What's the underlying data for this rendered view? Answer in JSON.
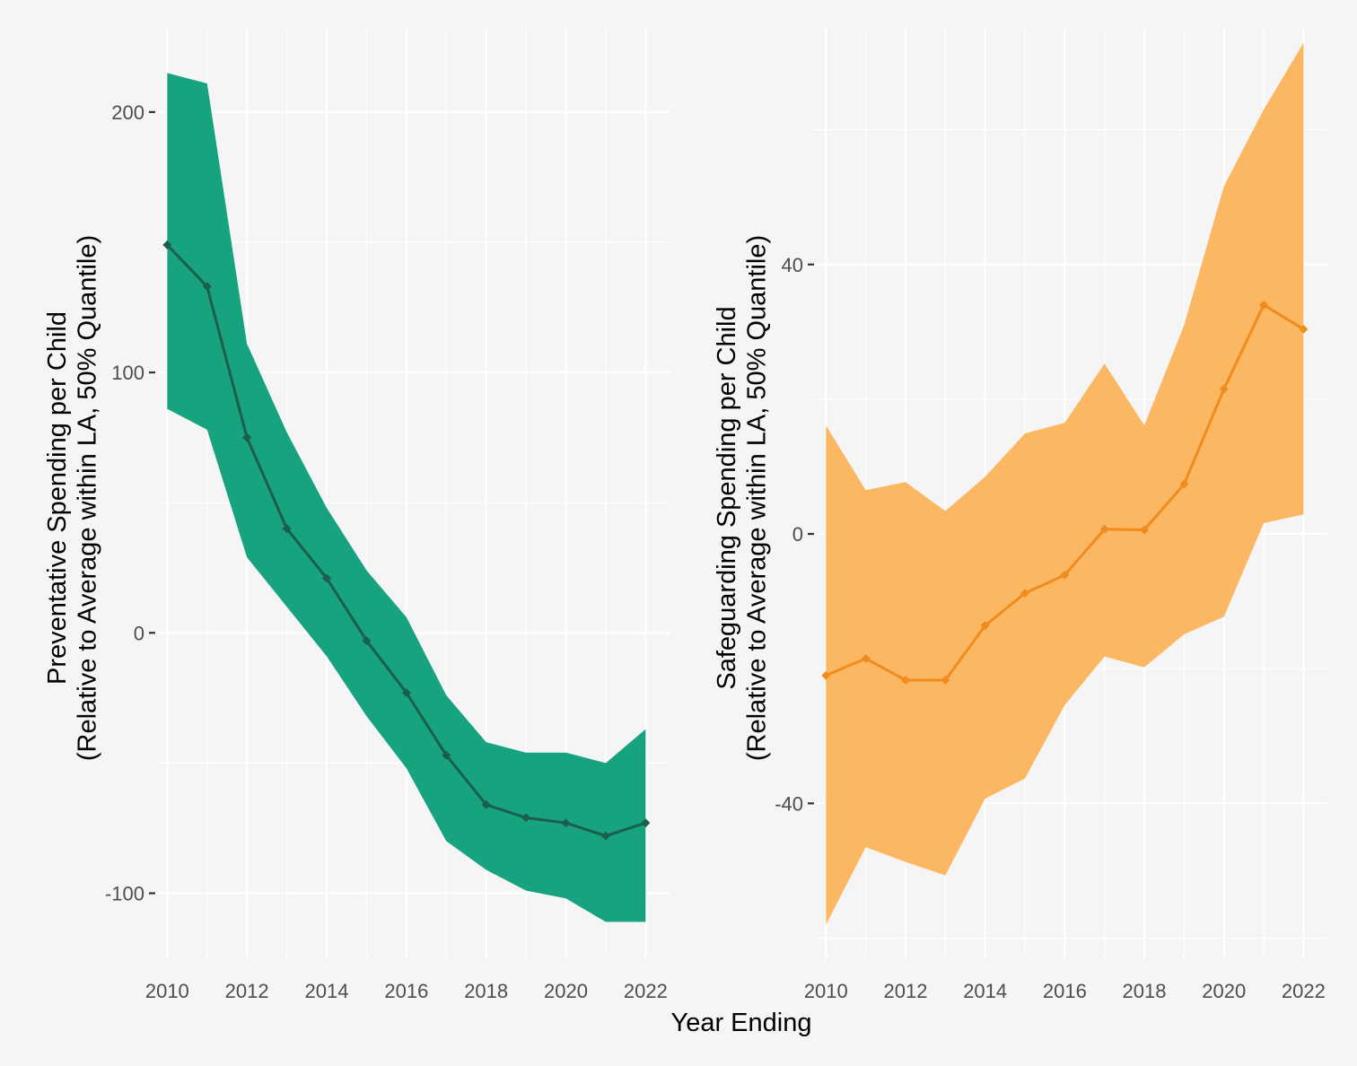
{
  "chart_data": [
    {
      "type": "line",
      "ylabel_line1": "Preventative Spending per Child",
      "ylabel_line2": "(Relative to Average within LA, 50% Quantile)",
      "x_ticks": [
        "2010",
        "2012",
        "2014",
        "2016",
        "2018",
        "2020",
        "2022"
      ],
      "y_ticks": [
        "200",
        "100",
        "0",
        "-100"
      ],
      "y_tick_values": [
        200,
        100,
        0,
        -100
      ],
      "ylim": [
        -125,
        232
      ],
      "xlim": [
        2009.7,
        2022.6
      ],
      "series": [
        {
          "x": [
            2010,
            2011,
            2012,
            2013,
            2014,
            2015,
            2016,
            2017,
            2018,
            2019,
            2020,
            2021,
            2022
          ],
          "values": [
            149,
            133,
            75,
            40,
            21,
            -3,
            -23,
            -47,
            -66,
            -71,
            -73,
            -78,
            -73
          ],
          "lower": [
            86,
            78,
            29,
            10,
            -9,
            -32,
            -52,
            -80,
            -91,
            -99,
            -102,
            -111,
            -111
          ],
          "upper": [
            215,
            211,
            111,
            77,
            48,
            24,
            6,
            -24,
            -42,
            -46,
            -46,
            -50,
            -37
          ],
          "color": "#1b5e4b",
          "ribbon_color": "#17a37f"
        }
      ]
    },
    {
      "type": "line",
      "ylabel_line1": "Safeguarding Spending per Child",
      "ylabel_line2": "(Relative to Average within LA, 50% Quantile)",
      "x_ticks": [
        "2010",
        "2012",
        "2014",
        "2016",
        "2018",
        "2020",
        "2022"
      ],
      "y_ticks": [
        "40",
        "0",
        "-40"
      ],
      "y_tick_values": [
        40,
        0,
        -40
      ],
      "ylim": [
        -63,
        75
      ],
      "xlim": [
        2009.7,
        2022.6
      ],
      "series": [
        {
          "x": [
            2010,
            2011,
            2012,
            2013,
            2014,
            2015,
            2016,
            2017,
            2018,
            2019,
            2020,
            2021,
            2022
          ],
          "values": [
            -21,
            -18.5,
            -21.7,
            -21.7,
            -13.6,
            -8.8,
            -6.1,
            0.7,
            0.6,
            7.4,
            21.5,
            34,
            30.4
          ],
          "lower": [
            -58,
            -46.5,
            -48.7,
            -50.7,
            -39.3,
            -36.3,
            -25.4,
            -18.2,
            -19.8,
            -14.9,
            -12.3,
            1.6,
            2.9
          ],
          "upper": [
            16.1,
            6.5,
            7.7,
            3.4,
            8.5,
            14.9,
            16.5,
            25.3,
            16.1,
            31,
            51.6,
            63,
            72.9
          ],
          "color": "#f08c1e",
          "ribbon_color": "#fcb763"
        }
      ]
    }
  ],
  "xlabel": "Year Ending"
}
